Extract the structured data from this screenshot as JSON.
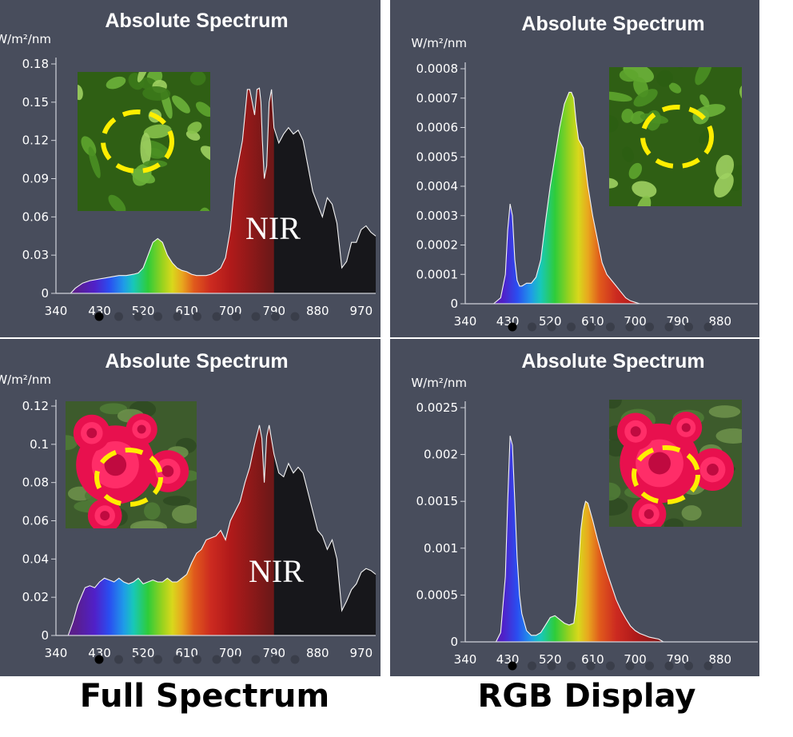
{
  "captions": {
    "left": "Full Spectrum",
    "right": "RGB Display"
  },
  "chart_data": [
    {
      "id": "full-leaf",
      "type": "area",
      "title": "Absolute Spectrum",
      "ylabel": "W/m²/nm",
      "annotation": "NIR",
      "photo": "leaf",
      "xlim": [
        340,
        1000
      ],
      "ylim": [
        0,
        0.18
      ],
      "x_ticks": [
        "340",
        "430",
        "520",
        "610",
        "700",
        "790",
        "880",
        "970"
      ],
      "y_ticks": [
        "0",
        "0.03",
        "0.06",
        "0.09",
        "0.12",
        "0.15",
        "0.18"
      ],
      "x": [
        370,
        380,
        395,
        410,
        425,
        440,
        455,
        470,
        485,
        500,
        510,
        520,
        530,
        540,
        550,
        560,
        570,
        580,
        590,
        600,
        610,
        620,
        630,
        640,
        650,
        660,
        670,
        680,
        690,
        700,
        705,
        710,
        715,
        720,
        725,
        730,
        735,
        740,
        745,
        750,
        755,
        760,
        763,
        766,
        770,
        775,
        780,
        785,
        790,
        800,
        810,
        820,
        830,
        840,
        850,
        860,
        870,
        880,
        890,
        900,
        910,
        920,
        930,
        940,
        950,
        960,
        970,
        980,
        990,
        1000
      ],
      "values": [
        0,
        0.004,
        0.008,
        0.01,
        0.011,
        0.012,
        0.013,
        0.014,
        0.014,
        0.015,
        0.016,
        0.02,
        0.03,
        0.04,
        0.043,
        0.04,
        0.03,
        0.024,
        0.02,
        0.018,
        0.017,
        0.015,
        0.014,
        0.014,
        0.014,
        0.015,
        0.017,
        0.02,
        0.028,
        0.05,
        0.07,
        0.09,
        0.1,
        0.11,
        0.12,
        0.14,
        0.16,
        0.16,
        0.15,
        0.14,
        0.16,
        0.161,
        0.15,
        0.12,
        0.09,
        0.1,
        0.15,
        0.16,
        0.13,
        0.118,
        0.125,
        0.13,
        0.125,
        0.128,
        0.12,
        0.1,
        0.08,
        0.07,
        0.06,
        0.075,
        0.07,
        0.055,
        0.02,
        0.025,
        0.04,
        0.04,
        0.05,
        0.053,
        0.048,
        0.045
      ],
      "nir_from": 790,
      "pagination": {
        "total": 11,
        "active": 0
      }
    },
    {
      "id": "rgb-leaf",
      "type": "area",
      "title": "Absolute Spectrum",
      "ylabel": "W/m²/nm",
      "photo": "leaf",
      "xlim": [
        340,
        960
      ],
      "ylim": [
        0,
        0.0008
      ],
      "x_ticks": [
        "340",
        "430",
        "520",
        "610",
        "700",
        "790",
        "880"
      ],
      "y_ticks": [
        "0",
        "0.0001",
        "0.0002",
        "0.0003",
        "0.0004",
        "0.0005",
        "0.0006",
        "0.0007",
        "0.0008"
      ],
      "x": [
        400,
        415,
        425,
        430,
        435,
        440,
        445,
        450,
        455,
        460,
        470,
        480,
        490,
        500,
        510,
        520,
        530,
        540,
        550,
        560,
        565,
        570,
        575,
        580,
        590,
        600,
        610,
        620,
        630,
        640,
        650,
        660,
        670,
        680,
        690,
        700,
        710
      ],
      "values": [
        0,
        2e-05,
        0.0001,
        0.00025,
        0.00034,
        0.0003,
        0.00015,
        8e-05,
        6e-05,
        6e-05,
        7e-05,
        7e-05,
        9e-05,
        0.00015,
        0.00028,
        0.0004,
        0.0005,
        0.0006,
        0.00068,
        0.00072,
        0.00072,
        0.0007,
        0.00062,
        0.00056,
        0.00053,
        0.0004,
        0.0003,
        0.00022,
        0.00014,
        0.0001,
        8e-05,
        6e-05,
        4e-05,
        2e-05,
        1e-05,
        5e-06,
        0
      ],
      "pagination": {
        "total": 11,
        "active": 0
      }
    },
    {
      "id": "full-rose",
      "type": "area",
      "title": "Absolute Spectrum",
      "ylabel": "W/m²/nm",
      "annotation": "NIR",
      "photo": "rose",
      "xlim": [
        340,
        1000
      ],
      "ylim": [
        0,
        0.12
      ],
      "x_ticks": [
        "340",
        "430",
        "520",
        "610",
        "700",
        "790",
        "880",
        "970"
      ],
      "y_ticks": [
        "0",
        "0.02",
        "0.04",
        "0.06",
        "0.08",
        "0.1",
        "0.12"
      ],
      "x": [
        365,
        375,
        385,
        395,
        400,
        410,
        420,
        430,
        440,
        450,
        460,
        470,
        480,
        490,
        500,
        510,
        520,
        530,
        540,
        550,
        560,
        570,
        580,
        590,
        600,
        610,
        620,
        630,
        640,
        650,
        660,
        670,
        680,
        690,
        700,
        710,
        720,
        730,
        740,
        750,
        755,
        760,
        765,
        770,
        775,
        780,
        790,
        800,
        810,
        820,
        830,
        840,
        850,
        860,
        870,
        880,
        890,
        900,
        910,
        920,
        930,
        940,
        950,
        960,
        970,
        980,
        990,
        1000
      ],
      "values": [
        0,
        0.007,
        0.016,
        0.022,
        0.025,
        0.026,
        0.025,
        0.028,
        0.03,
        0.029,
        0.028,
        0.03,
        0.028,
        0.027,
        0.028,
        0.03,
        0.027,
        0.028,
        0.029,
        0.028,
        0.028,
        0.03,
        0.028,
        0.028,
        0.03,
        0.032,
        0.038,
        0.043,
        0.045,
        0.05,
        0.051,
        0.052,
        0.055,
        0.05,
        0.06,
        0.065,
        0.07,
        0.08,
        0.088,
        0.1,
        0.105,
        0.11,
        0.103,
        0.08,
        0.104,
        0.11,
        0.095,
        0.085,
        0.083,
        0.09,
        0.085,
        0.088,
        0.085,
        0.075,
        0.065,
        0.055,
        0.052,
        0.045,
        0.05,
        0.04,
        0.013,
        0.018,
        0.024,
        0.027,
        0.033,
        0.035,
        0.034,
        0.032
      ],
      "nir_from": 790,
      "pagination": {
        "total": 11,
        "active": 0
      }
    },
    {
      "id": "rgb-rose",
      "type": "area",
      "title": "Absolute Spectrum",
      "ylabel": "W/m²/nm",
      "photo": "rose",
      "xlim": [
        340,
        960
      ],
      "ylim": [
        0,
        0.0025
      ],
      "x_ticks": [
        "340",
        "430",
        "520",
        "610",
        "700",
        "790",
        "880"
      ],
      "y_ticks": [
        "0",
        "0.0005",
        "0.001",
        "0.0015",
        "0.002",
        "0.0025"
      ],
      "x": [
        405,
        415,
        425,
        430,
        435,
        440,
        445,
        450,
        455,
        460,
        470,
        480,
        490,
        500,
        510,
        520,
        530,
        540,
        550,
        560,
        570,
        575,
        580,
        585,
        590,
        595,
        600,
        610,
        620,
        630,
        640,
        650,
        660,
        670,
        680,
        690,
        700,
        710,
        720,
        730,
        740,
        750,
        760
      ],
      "values": [
        0,
        0.0001,
        0.0007,
        0.0015,
        0.0022,
        0.0021,
        0.0015,
        0.0009,
        0.0005,
        0.0003,
        0.00012,
        7e-05,
        7e-05,
        0.0001,
        0.00018,
        0.00026,
        0.00028,
        0.00024,
        0.0002,
        0.00018,
        0.0002,
        0.0004,
        0.0008,
        0.0012,
        0.0014,
        0.0015,
        0.00148,
        0.0013,
        0.0011,
        0.00092,
        0.00075,
        0.0006,
        0.00045,
        0.00034,
        0.00025,
        0.00017,
        0.00012,
        9e-05,
        7e-05,
        5e-05,
        4e-05,
        3e-05,
        0
      ],
      "pagination": {
        "total": 11,
        "active": 0
      }
    }
  ]
}
